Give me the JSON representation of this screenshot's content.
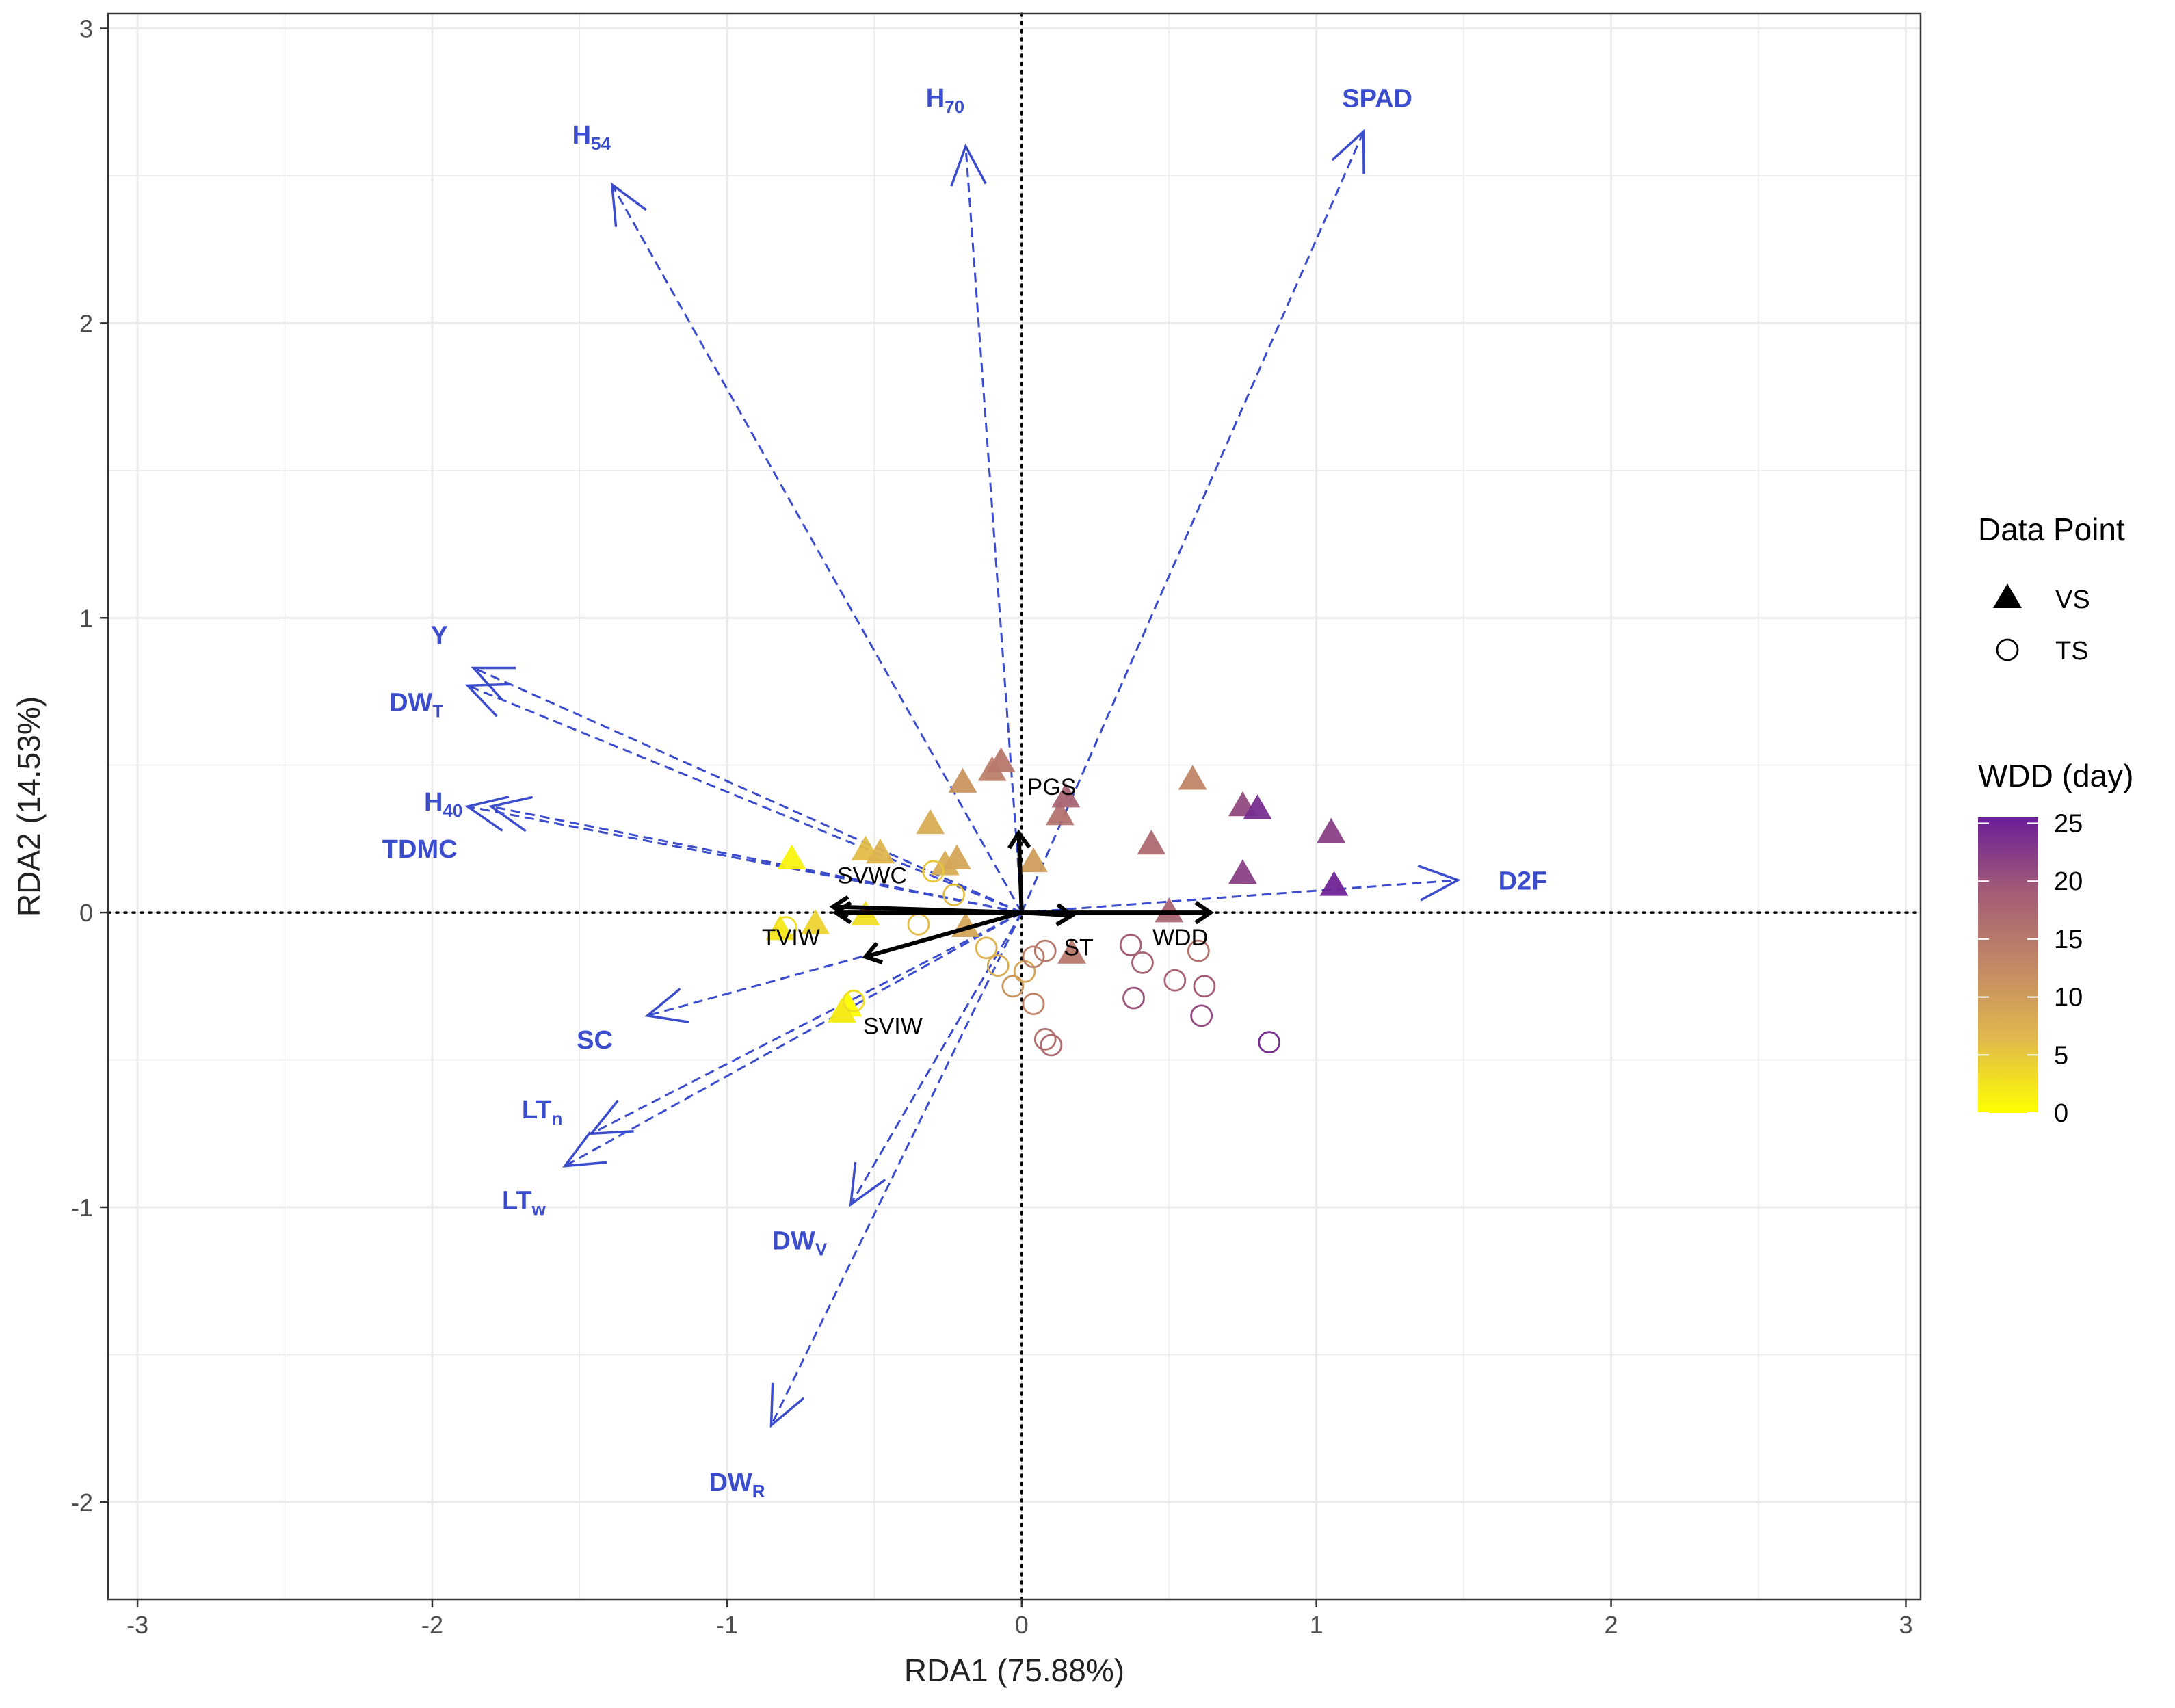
{
  "chart_data": {
    "type": "scatter",
    "subtype": "RDA biplot",
    "title": "",
    "xlabel": "RDA1 (75.88%)",
    "ylabel": "RDA2 (14.53%)",
    "xlim": [
      -3.1,
      3.05
    ],
    "ylim": [
      -2.33,
      3.05
    ],
    "xticks": [
      -3,
      -2,
      -1,
      0,
      1,
      2,
      3
    ],
    "yticks": [
      -2,
      -1,
      0,
      1,
      2,
      3
    ],
    "grid": true,
    "reference_lines": "dotted lines at x = 0 and y = 0",
    "response_vectors": [
      {
        "name": "SPAD",
        "main": "SPAD",
        "sub": "",
        "x": 1.16,
        "y": 2.65
      },
      {
        "name": "H70",
        "main": "H",
        "sub": "70",
        "x": -0.19,
        "y": 2.6
      },
      {
        "name": "H54",
        "main": "H",
        "sub": "54",
        "x": -1.39,
        "y": 2.47
      },
      {
        "name": "Y",
        "main": "Y",
        "sub": "",
        "x": -1.86,
        "y": 0.83
      },
      {
        "name": "DWT",
        "main": "DW",
        "sub": "T",
        "x": -1.88,
        "y": 0.77
      },
      {
        "name": "H40",
        "main": "H",
        "sub": "40",
        "x": -1.8,
        "y": 0.36
      },
      {
        "name": "TDMC",
        "main": "TDMC",
        "sub": "",
        "x": -1.88,
        "y": 0.36
      },
      {
        "name": "D2F",
        "main": "D2F",
        "sub": "",
        "x": 1.48,
        "y": 0.11
      },
      {
        "name": "SC",
        "main": "SC",
        "sub": "",
        "x": -1.27,
        "y": -0.35
      },
      {
        "name": "LTn",
        "main": "LT",
        "sub": "n",
        "x": -1.46,
        "y": -0.75
      },
      {
        "name": "LTw",
        "main": "LT",
        "sub": "w",
        "x": -1.55,
        "y": -0.86
      },
      {
        "name": "DWV",
        "main": "DW",
        "sub": "V",
        "x": -0.58,
        "y": -0.99
      },
      {
        "name": "DWR",
        "main": "DW",
        "sub": "R",
        "x": -0.85,
        "y": -1.74
      }
    ],
    "environment_vectors": [
      {
        "name": "PGS",
        "x": -0.01,
        "y": 0.27
      },
      {
        "name": "SVWC",
        "x": -0.64,
        "y": 0.02
      },
      {
        "name": "TVIW",
        "x": -0.63,
        "y": 0.0
      },
      {
        "name": "SVIW",
        "x": -0.53,
        "y": -0.15
      },
      {
        "name": "ST",
        "x": 0.17,
        "y": -0.01
      },
      {
        "name": "WDD",
        "x": 0.64,
        "y": 0.0
      }
    ],
    "points": [
      {
        "shape": "VS",
        "x": -0.78,
        "y": 0.18,
        "wdd": 1
      },
      {
        "shape": "VS",
        "x": -0.53,
        "y": 0.21,
        "wdd": 6
      },
      {
        "shape": "VS",
        "x": -0.48,
        "y": 0.2,
        "wdd": 7
      },
      {
        "shape": "VS",
        "x": -0.31,
        "y": 0.3,
        "wdd": 8
      },
      {
        "shape": "VS",
        "x": -0.26,
        "y": 0.16,
        "wdd": 8
      },
      {
        "shape": "VS",
        "x": -0.22,
        "y": 0.18,
        "wdd": 9
      },
      {
        "shape": "VS",
        "x": -0.2,
        "y": 0.44,
        "wdd": 11
      },
      {
        "shape": "VS",
        "x": -0.1,
        "y": 0.48,
        "wdd": 14
      },
      {
        "shape": "VS",
        "x": -0.07,
        "y": 0.51,
        "wdd": 15
      },
      {
        "shape": "VS",
        "x": 0.04,
        "y": 0.17,
        "wdd": 10
      },
      {
        "shape": "VS",
        "x": 0.13,
        "y": 0.33,
        "wdd": 16
      },
      {
        "shape": "VS",
        "x": 0.15,
        "y": 0.39,
        "wdd": 18
      },
      {
        "shape": "VS",
        "x": -0.82,
        "y": -0.06,
        "wdd": 2
      },
      {
        "shape": "VS",
        "x": -0.7,
        "y": -0.04,
        "wdd": 4
      },
      {
        "shape": "VS",
        "x": -0.53,
        "y": -0.01,
        "wdd": 3
      },
      {
        "shape": "VS",
        "x": -0.59,
        "y": -0.32,
        "wdd": 0
      },
      {
        "shape": "VS",
        "x": -0.61,
        "y": -0.34,
        "wdd": 2
      },
      {
        "shape": "VS",
        "x": -0.19,
        "y": -0.05,
        "wdd": 9
      },
      {
        "shape": "VS",
        "x": 0.17,
        "y": -0.14,
        "wdd": 15
      },
      {
        "shape": "VS",
        "x": 0.44,
        "y": 0.23,
        "wdd": 17
      },
      {
        "shape": "VS",
        "x": 0.58,
        "y": 0.45,
        "wdd": 13
      },
      {
        "shape": "VS",
        "x": 0.5,
        "y": 0.0,
        "wdd": 18
      },
      {
        "shape": "VS",
        "x": 0.75,
        "y": 0.36,
        "wdd": 21
      },
      {
        "shape": "VS",
        "x": 0.8,
        "y": 0.35,
        "wdd": 24
      },
      {
        "shape": "VS",
        "x": 0.75,
        "y": 0.13,
        "wdd": 22
      },
      {
        "shape": "VS",
        "x": 1.05,
        "y": 0.27,
        "wdd": 22
      },
      {
        "shape": "VS",
        "x": 1.06,
        "y": 0.09,
        "wdd": 25
      },
      {
        "shape": "TS",
        "x": -0.8,
        "y": -0.05,
        "wdd": 3
      },
      {
        "shape": "TS",
        "x": -0.57,
        "y": -0.3,
        "wdd": 3
      },
      {
        "shape": "TS",
        "x": -0.35,
        "y": -0.04,
        "wdd": 6
      },
      {
        "shape": "TS",
        "x": -0.3,
        "y": 0.14,
        "wdd": 5
      },
      {
        "shape": "TS",
        "x": -0.23,
        "y": 0.06,
        "wdd": 6
      },
      {
        "shape": "TS",
        "x": -0.12,
        "y": -0.12,
        "wdd": 7
      },
      {
        "shape": "TS",
        "x": -0.08,
        "y": -0.18,
        "wdd": 8
      },
      {
        "shape": "TS",
        "x": -0.03,
        "y": -0.25,
        "wdd": 11
      },
      {
        "shape": "TS",
        "x": 0.01,
        "y": -0.2,
        "wdd": 9
      },
      {
        "shape": "TS",
        "x": 0.04,
        "y": -0.31,
        "wdd": 13
      },
      {
        "shape": "TS",
        "x": 0.04,
        "y": -0.15,
        "wdd": 14
      },
      {
        "shape": "TS",
        "x": 0.08,
        "y": -0.13,
        "wdd": 15
      },
      {
        "shape": "TS",
        "x": 0.08,
        "y": -0.43,
        "wdd": 16
      },
      {
        "shape": "TS",
        "x": 0.1,
        "y": -0.45,
        "wdd": 17
      },
      {
        "shape": "TS",
        "x": 0.37,
        "y": -0.11,
        "wdd": 19
      },
      {
        "shape": "TS",
        "x": 0.41,
        "y": -0.17,
        "wdd": 18
      },
      {
        "shape": "TS",
        "x": 0.38,
        "y": -0.29,
        "wdd": 20
      },
      {
        "shape": "TS",
        "x": 0.52,
        "y": -0.23,
        "wdd": 18
      },
      {
        "shape": "TS",
        "x": 0.6,
        "y": -0.13,
        "wdd": 16
      },
      {
        "shape": "TS",
        "x": 0.62,
        "y": -0.25,
        "wdd": 19
      },
      {
        "shape": "TS",
        "x": 0.61,
        "y": -0.35,
        "wdd": 21
      },
      {
        "shape": "TS",
        "x": 0.84,
        "y": -0.44,
        "wdd": 24
      }
    ],
    "colorbar": {
      "title": "WDD (day)",
      "ticks": [
        0,
        5,
        10,
        15,
        20,
        25
      ],
      "range": [
        0,
        25.5
      ],
      "colors": [
        "#ffff00",
        "#e0b94c",
        "#c28866",
        "#a25c76",
        "#6a1e98"
      ]
    },
    "legend": {
      "title": "Data Point",
      "placement": "right",
      "items": [
        {
          "label": "VS",
          "shape": "filled-triangle"
        },
        {
          "label": "TS",
          "shape": "open-circle"
        }
      ]
    },
    "colors": {
      "response_arrow": "#3b4ccc",
      "environment_arrow": "#000000",
      "grid": "#ebebeb"
    }
  }
}
